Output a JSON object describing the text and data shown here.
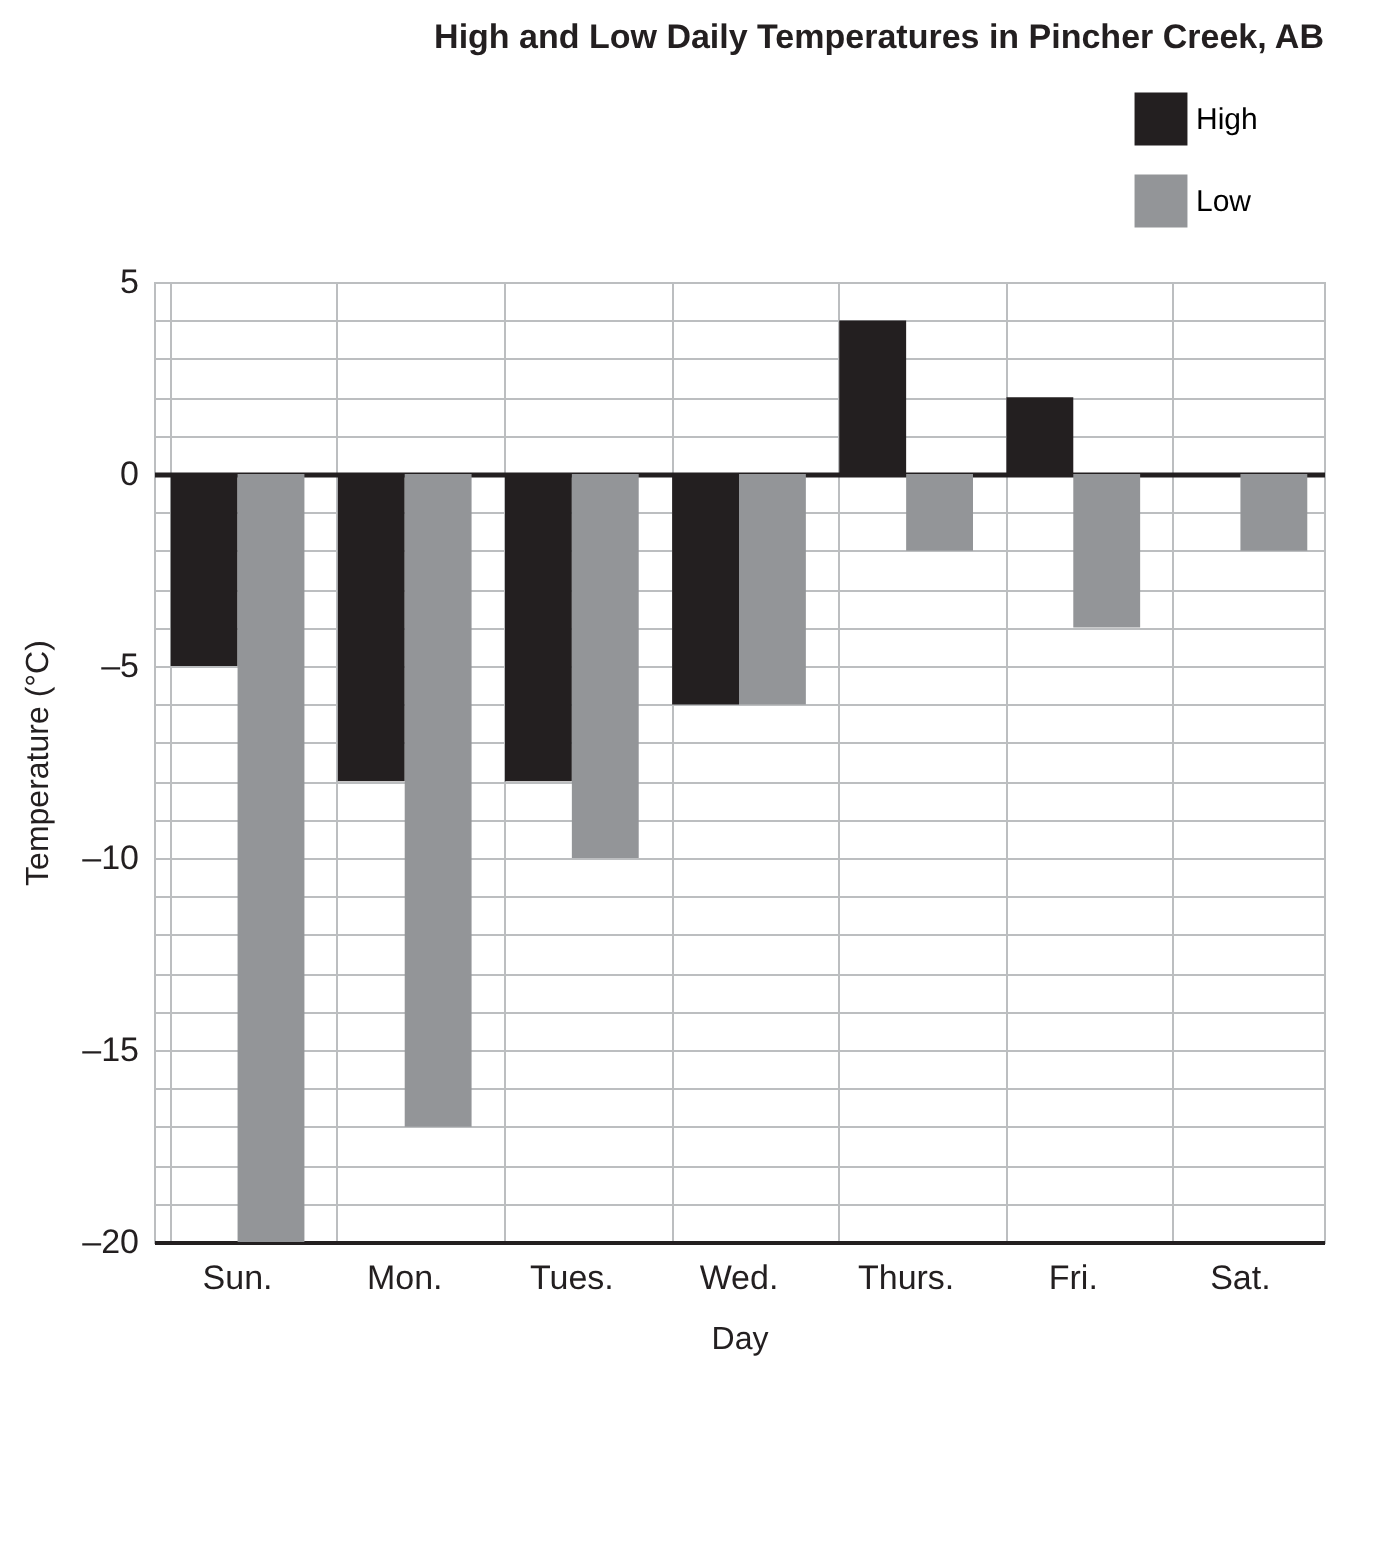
{
  "chart_data": {
    "type": "bar",
    "title": "High and Low Daily Temperatures in Pincher Creek, AB",
    "xlabel": "Day",
    "ylabel": "Temperature (°C)",
    "categories": [
      "Sun.",
      "Mon.",
      "Tues.",
      "Wed.",
      "Thurs.",
      "Fri.",
      "Sat."
    ],
    "series": [
      {
        "name": "High",
        "color": "#231f20",
        "values": [
          -5,
          -8,
          -8,
          -6,
          4,
          2,
          0
        ]
      },
      {
        "name": "Low",
        "color": "#939598",
        "values": [
          -20,
          -17,
          -10,
          -6,
          -2,
          -4,
          -2
        ]
      }
    ],
    "ylim": [
      -20,
      5
    ],
    "yticks": [
      {
        "value": -20,
        "label": "–20"
      },
      {
        "value": -19,
        "label": null
      },
      {
        "value": -18,
        "label": null
      },
      {
        "value": -17,
        "label": null
      },
      {
        "value": -16,
        "label": null
      },
      {
        "value": -15,
        "label": "–15"
      },
      {
        "value": -14,
        "label": null
      },
      {
        "value": -13,
        "label": null
      },
      {
        "value": -12,
        "label": null
      },
      {
        "value": -11,
        "label": null
      },
      {
        "value": -10,
        "label": "–10"
      },
      {
        "value": -9,
        "label": null
      },
      {
        "value": -8,
        "label": null
      },
      {
        "value": -7,
        "label": null
      },
      {
        "value": -6,
        "label": null
      },
      {
        "value": -5,
        "label": "–5"
      },
      {
        "value": -4,
        "label": null
      },
      {
        "value": -3,
        "label": null
      },
      {
        "value": -2,
        "label": null
      },
      {
        "value": -1,
        "label": null
      },
      0,
      {
        "value": 1,
        "label": null
      },
      {
        "value": 2,
        "label": null
      },
      {
        "value": 3,
        "label": null
      },
      {
        "value": 4,
        "label": null
      },
      5
    ],
    "grid": true,
    "legend": "top right"
  }
}
